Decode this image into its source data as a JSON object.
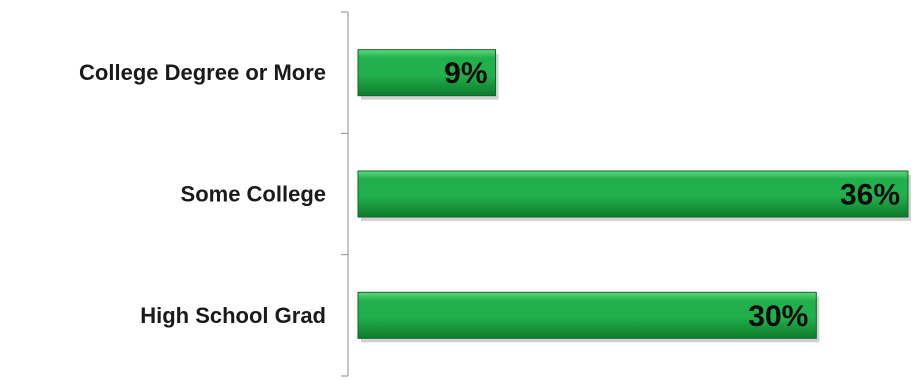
{
  "colors": {
    "bar_fill": "#21b04b",
    "bar_highlight": "#5fd77e",
    "bar_shadow": "#0e7a2c",
    "bar_edge": "#0b6a26",
    "axis": "#8c8c8c",
    "label_text": "#1a1a1a",
    "value_text": "#0a0a0a"
  },
  "chart_data": {
    "type": "bar",
    "orientation": "horizontal",
    "categories": [
      "College Degree or More",
      "Some College",
      "High School Grad"
    ],
    "values": [
      9,
      36,
      30
    ],
    "value_labels": [
      "9%",
      "36%",
      "30%"
    ],
    "unit": "%",
    "title": "",
    "xlabel": "",
    "ylabel": "",
    "xlim": [
      0,
      36
    ],
    "grid": false,
    "legend": "none"
  }
}
